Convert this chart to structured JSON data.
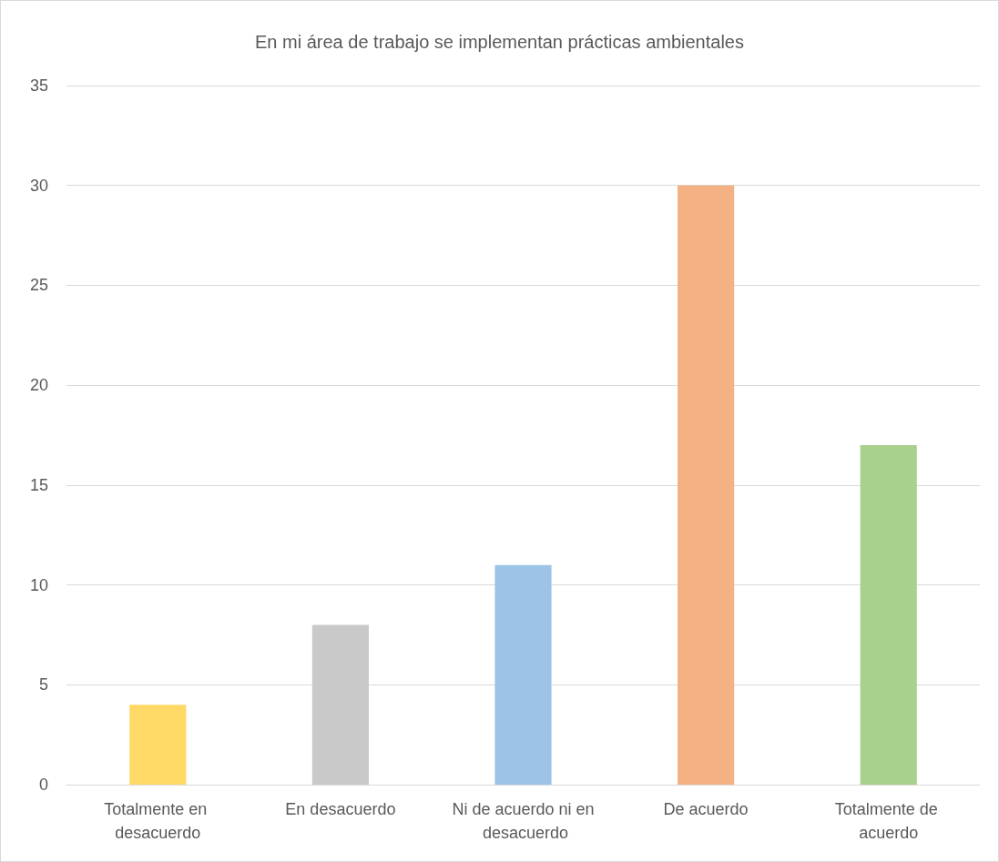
{
  "chart_data": {
    "type": "bar",
    "title": "En mi área de trabajo se implementan prácticas ambientales",
    "categories": [
      "Totalmente en desacuerdo",
      "En desacuerdo",
      "Ni de acuerdo ni en desacuerdo",
      "De acuerdo",
      "Totalmente de acuerdo"
    ],
    "values": [
      4,
      8,
      11,
      30,
      17
    ],
    "colors": [
      "#ffd966",
      "#c9c9c9",
      "#9dc3e6",
      "#f4b183",
      "#a9d18e"
    ],
    "ylim": [
      0,
      35
    ],
    "yticks": [
      0,
      5,
      10,
      15,
      20,
      25,
      30,
      35
    ],
    "grid": "y"
  }
}
